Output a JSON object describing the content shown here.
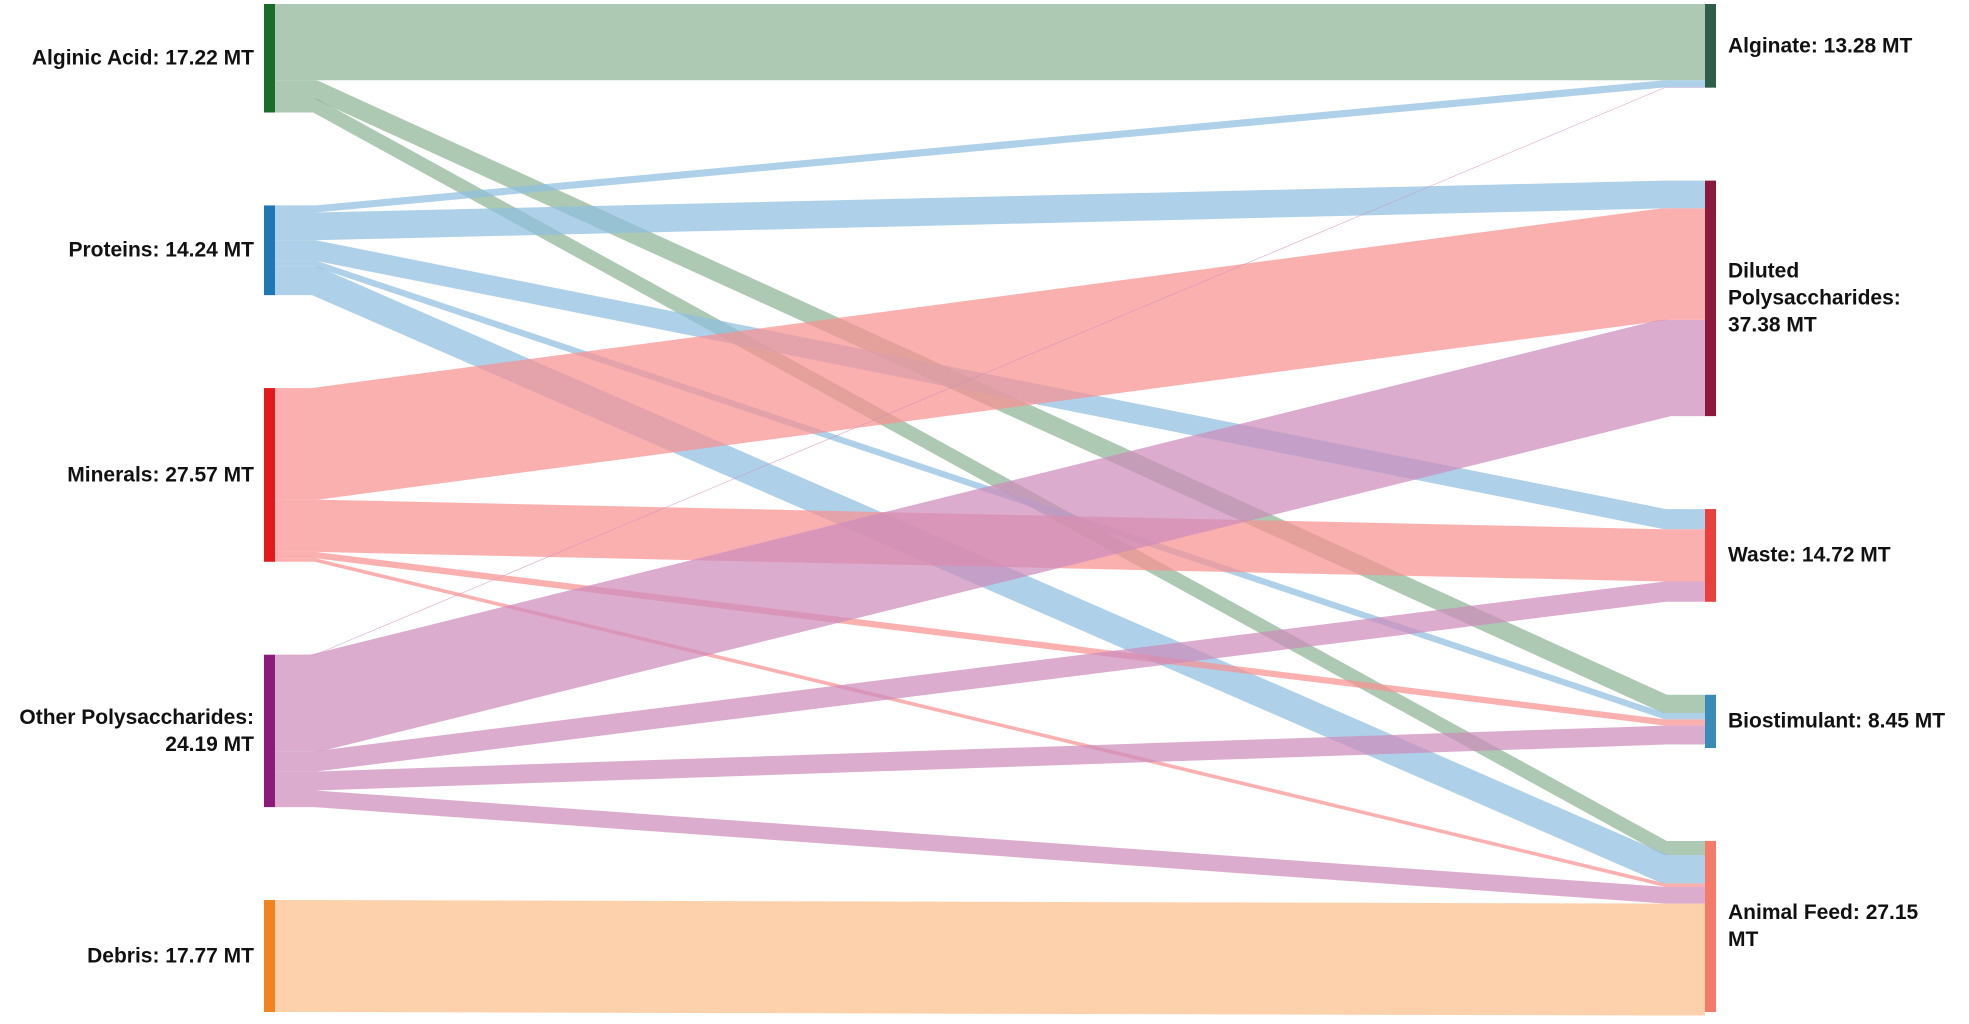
{
  "diagram": {
    "type": "sankey",
    "units": "MT",
    "sources": [
      {
        "id": "alginic_acid",
        "label": "Alginic Acid: 17.22 MT",
        "value": 17.22,
        "color": "#1b6b2a",
        "link_color": "#8fb496"
      },
      {
        "id": "proteins",
        "label": "Proteins: 14.24 MT",
        "value": 14.24,
        "color": "#1f78b4",
        "link_color": "#8fbfe0"
      },
      {
        "id": "minerals",
        "label": "Minerals: 27.57 MT",
        "value": 27.57,
        "color": "#e31a1c",
        "link_color": "#f99292"
      },
      {
        "id": "other_polysaccharides",
        "label": "Other Polysaccharides:\n24.19 MT",
        "value": 24.19,
        "color": "#8b1a7a",
        "link_color": "#cd8cbb"
      },
      {
        "id": "debris",
        "label": "Debris: 17.77 MT",
        "value": 17.77,
        "color": "#f28322",
        "link_color": "#fdbf8d"
      }
    ],
    "targets": [
      {
        "id": "alginate",
        "label": "Alginate: 13.28 MT",
        "value": 13.28,
        "color": "#2e5e4a"
      },
      {
        "id": "diluted_polysaccharides",
        "label": "Diluted\nPolysaccharides:\n37.38 MT",
        "value": 37.38,
        "color": "#8b1a3c"
      },
      {
        "id": "waste",
        "label": "Waste: 14.72 MT",
        "value": 14.72,
        "color": "#e83f3f"
      },
      {
        "id": "biostimulant",
        "label": "Biostimulant: 8.45 MT",
        "value": 8.45,
        "color": "#3a8bb8"
      },
      {
        "id": "animal_feed",
        "label": "Animal Feed: 27.15\nMT",
        "value": 27.15,
        "color": "#f47a6a"
      }
    ],
    "links": [
      {
        "source": "alginic_acid",
        "target": "alginate",
        "value": 12.1
      },
      {
        "source": "alginic_acid",
        "target": "biostimulant",
        "value": 2.9
      },
      {
        "source": "alginic_acid",
        "target": "animal_feed",
        "value": 2.22
      },
      {
        "source": "proteins",
        "target": "alginate",
        "value": 1.13
      },
      {
        "source": "proteins",
        "target": "diluted_polysaccharides",
        "value": 4.4
      },
      {
        "source": "proteins",
        "target": "waste",
        "value": 3.2
      },
      {
        "source": "proteins",
        "target": "biostimulant",
        "value": 1.0
      },
      {
        "source": "proteins",
        "target": "animal_feed",
        "value": 4.51
      },
      {
        "source": "minerals",
        "target": "diluted_polysaccharides",
        "value": 17.7
      },
      {
        "source": "minerals",
        "target": "waste",
        "value": 8.3
      },
      {
        "source": "minerals",
        "target": "biostimulant",
        "value": 1.0
      },
      {
        "source": "minerals",
        "target": "animal_feed",
        "value": 0.57
      },
      {
        "source": "other_polysaccharides",
        "target": "alginate",
        "value": 0.05
      },
      {
        "source": "other_polysaccharides",
        "target": "diluted_polysaccharides",
        "value": 15.28
      },
      {
        "source": "other_polysaccharides",
        "target": "waste",
        "value": 3.22
      },
      {
        "source": "other_polysaccharides",
        "target": "biostimulant",
        "value": 3.0
      },
      {
        "source": "other_polysaccharides",
        "target": "animal_feed",
        "value": 2.64
      },
      {
        "source": "debris",
        "target": "animal_feed",
        "value": 17.77
      }
    ]
  }
}
